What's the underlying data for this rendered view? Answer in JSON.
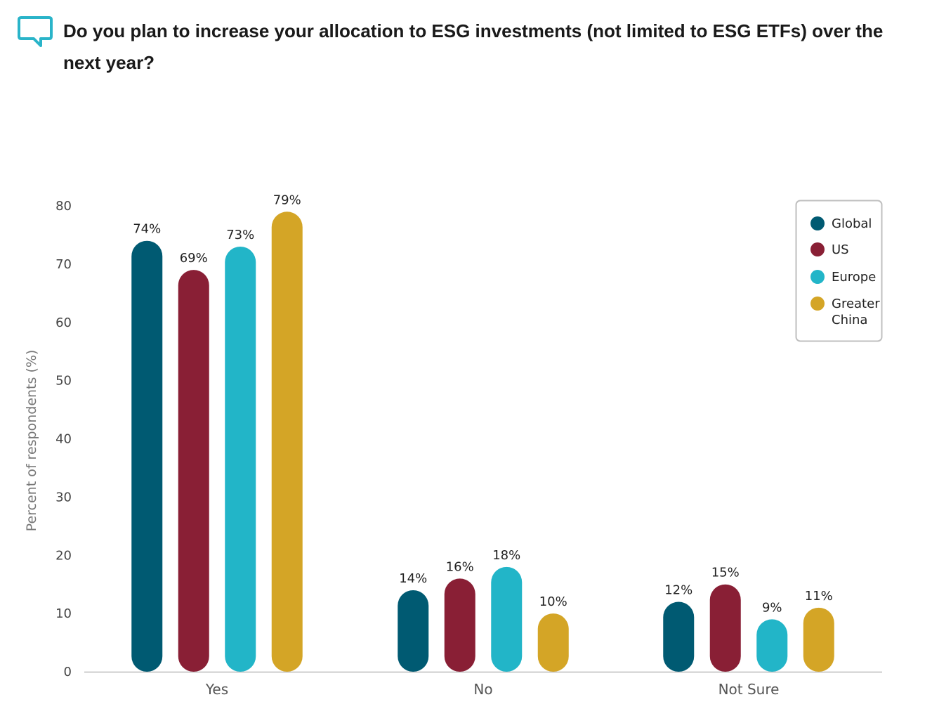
{
  "header": {
    "title": "Do you plan to increase your allocation to ESG investments (not limited to ESG ETFs) over the next year?",
    "icon": "speech-bubble-icon",
    "icon_color": "#2ab4c9"
  },
  "chart_data": {
    "type": "bar",
    "title": "",
    "xlabel": "",
    "ylabel": "Percent of respondents (%)",
    "ylim": [
      0,
      80
    ],
    "yticks": [
      0,
      10,
      20,
      30,
      40,
      50,
      60,
      70,
      80
    ],
    "categories": [
      "Yes",
      "No",
      "Not Sure"
    ],
    "series": [
      {
        "name": "Global",
        "color": "#005a72",
        "values": [
          74,
          14,
          12
        ],
        "labels": [
          "74%",
          "14%",
          "12%"
        ]
      },
      {
        "name": "US",
        "color": "#891f35",
        "values": [
          69,
          16,
          15
        ],
        "labels": [
          "69%",
          "16%",
          "15%"
        ]
      },
      {
        "name": "Europe",
        "color": "#22b5c8",
        "values": [
          73,
          18,
          9
        ],
        "labels": [
          "73%",
          "18%",
          "9%"
        ]
      },
      {
        "name": "Greater China",
        "color": "#d4a526",
        "values": [
          79,
          10,
          11
        ],
        "labels": [
          "79%",
          "10%",
          "11%"
        ]
      }
    ],
    "legend": {
      "position": "top-right",
      "lines": [
        [
          "Global"
        ],
        [
          "US"
        ],
        [
          "Europe"
        ],
        [
          "Greater",
          "China"
        ]
      ]
    },
    "grid": false
  }
}
